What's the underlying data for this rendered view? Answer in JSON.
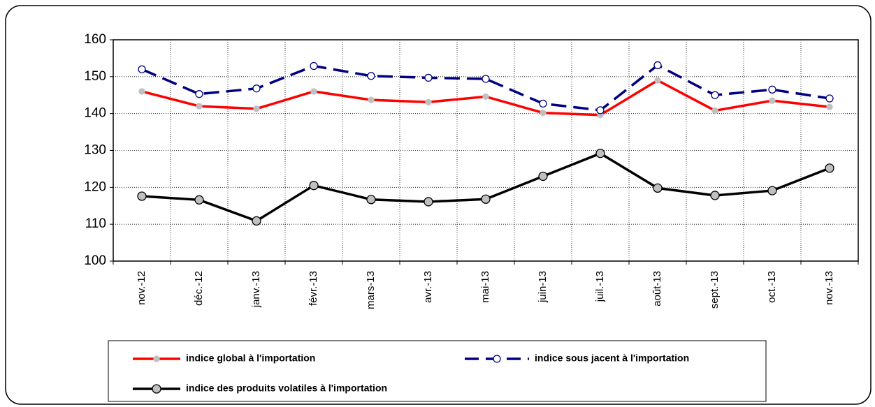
{
  "chart_data": {
    "type": "line",
    "categories": [
      "nov.-12",
      "déc.-12",
      "janv.-13",
      "févr.-13",
      "mars-13",
      "avr.-13",
      "mai-13",
      "juin-13",
      "juil.-13",
      "août-13",
      "sept.-13",
      "oct.-13",
      "nov.-13"
    ],
    "series": [
      {
        "name": "indice global à l'importation",
        "color": "#ff0000",
        "values": [
          146,
          142,
          141.3,
          146,
          143.7,
          143.1,
          144.6,
          140.2,
          139.6,
          149,
          140.8,
          143.5,
          141.8
        ]
      },
      {
        "name": "indice sous jacent à l'importation",
        "color": "#000080",
        "values": [
          152,
          145.3,
          146.8,
          152.9,
          150.2,
          149.7,
          149.4,
          142.7,
          140.9,
          153.1,
          145,
          146.5,
          144.1
        ]
      },
      {
        "name": "indice des produits volatiles à l'importation",
        "color": "#000000",
        "values": [
          117.6,
          116.6,
          110.9,
          120.5,
          116.7,
          116.1,
          116.8,
          123,
          129.2,
          119.8,
          117.8,
          119.1,
          125.2
        ]
      }
    ],
    "ylim": [
      100,
      160
    ],
    "yticks": [
      100,
      110,
      120,
      130,
      140,
      150,
      160
    ],
    "grid": true
  }
}
